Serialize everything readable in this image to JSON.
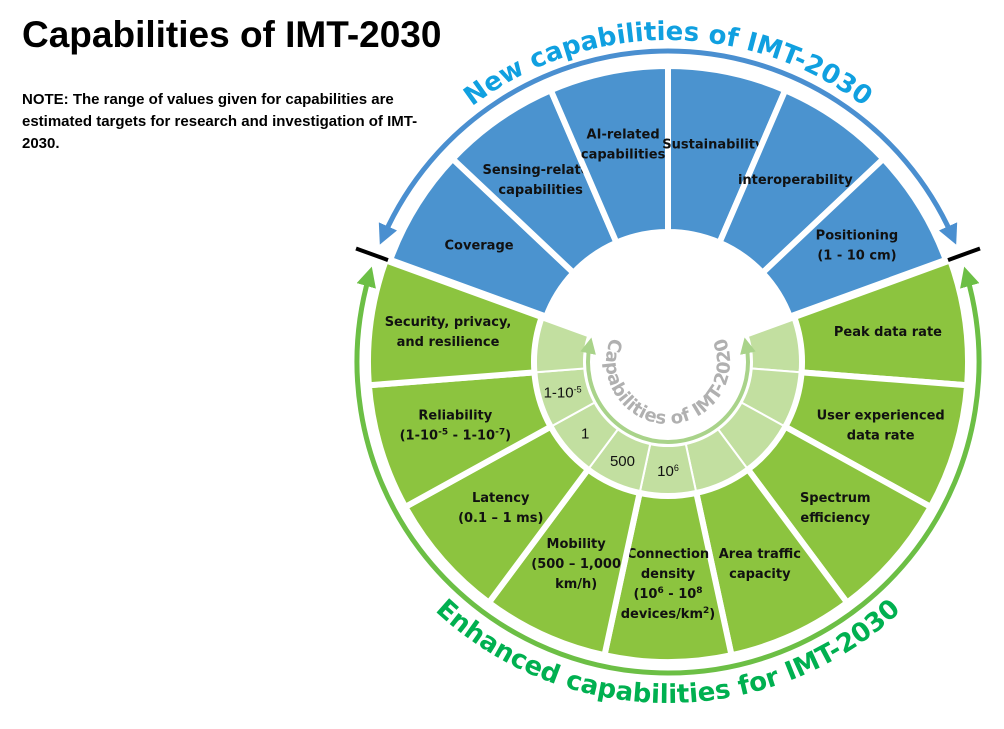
{
  "title": "Capabilities of IMT-2030",
  "note": "NOTE: The range of values given for capabilities are estimated targets for research and investigation of IMT-2030.",
  "colors": {
    "blue": "#4b93cf",
    "green": "#8cc43f",
    "light_green": "#c2dfa0",
    "blue_ring": "#4a8fd0",
    "green_ring": "#6cbf45",
    "new_text": "#10a0e0",
    "enhanced_text": "#00b050",
    "inner_text": "#b0b0b0",
    "inner_arrow": "#a9d38a"
  },
  "arc_labels": {
    "new": "New capabilities of IMT-2030",
    "enhanced": "Enhanced capabilities for IMT-2030",
    "inner": "Capabilities of IMT-2020"
  },
  "new_capabilities": [
    {
      "lines": [
        [
          {
            "t": "Coverage"
          }
        ]
      ]
    },
    {
      "lines": [
        [
          {
            "t": "Sensing-related"
          }
        ],
        [
          {
            "t": "capabilities"
          }
        ]
      ]
    },
    {
      "lines": [
        [
          {
            "t": "AI-related"
          }
        ],
        [
          {
            "t": "capabilities"
          }
        ]
      ]
    },
    {
      "lines": [
        [
          {
            "t": "Sustainability"
          }
        ]
      ]
    },
    {
      "lines": [
        [
          {
            "t": "interoperability"
          }
        ]
      ]
    },
    {
      "lines": [
        [
          {
            "t": "Positioning"
          }
        ],
        [
          {
            "t": "(1 - 10 cm)"
          }
        ]
      ]
    }
  ],
  "enhanced_capabilities": [
    {
      "lines": [
        [
          {
            "t": "Peak data rate"
          }
        ]
      ],
      "value": []
    },
    {
      "lines": [
        [
          {
            "t": "User experienced"
          }
        ],
        [
          {
            "t": "data rate"
          }
        ]
      ],
      "value": []
    },
    {
      "lines": [
        [
          {
            "t": "Spectrum"
          }
        ],
        [
          {
            "t": "efficiency"
          }
        ]
      ],
      "value": []
    },
    {
      "lines": [
        [
          {
            "t": "Area traffic"
          }
        ],
        [
          {
            "t": "capacity"
          }
        ]
      ],
      "value": []
    },
    {
      "lines": [
        [
          {
            "t": "Connection"
          }
        ],
        [
          {
            "t": "density"
          }
        ],
        [
          {
            "t": "(10"
          },
          {
            "t": "6",
            "sup": true
          },
          {
            "t": "  -  10"
          },
          {
            "t": "8",
            "sup": true
          }
        ],
        [
          {
            "t": "devices/km"
          },
          {
            "t": "2",
            "sup": true
          },
          {
            "t": ")"
          }
        ]
      ],
      "value": [
        {
          "t": "10"
        },
        {
          "t": "6",
          "sup": true
        }
      ]
    },
    {
      "lines": [
        [
          {
            "t": "Mobility"
          }
        ],
        [
          {
            "t": "(500 – 1,000"
          }
        ],
        [
          {
            "t": "km/h)"
          }
        ]
      ],
      "value": [
        {
          "t": "500"
        }
      ]
    },
    {
      "lines": [
        [
          {
            "t": "Latency"
          }
        ],
        [
          {
            "t": "(0.1 – 1 ms)"
          }
        ]
      ],
      "value": [
        {
          "t": "1"
        }
      ]
    },
    {
      "lines": [
        [
          {
            "t": "Reliability"
          }
        ],
        [
          {
            "t": "(1-10"
          },
          {
            "t": "-5",
            "sup": true
          },
          {
            "t": " - 1-10"
          },
          {
            "t": "-7",
            "sup": true
          },
          {
            "t": ")"
          }
        ]
      ],
      "value": [
        {
          "t": "1-10"
        },
        {
          "t": "-5",
          "sup": true
        }
      ]
    },
    {
      "lines": [
        [
          {
            "t": "Security, privacy,"
          }
        ],
        [
          {
            "t": "and resilience"
          }
        ]
      ],
      "value": []
    }
  ]
}
